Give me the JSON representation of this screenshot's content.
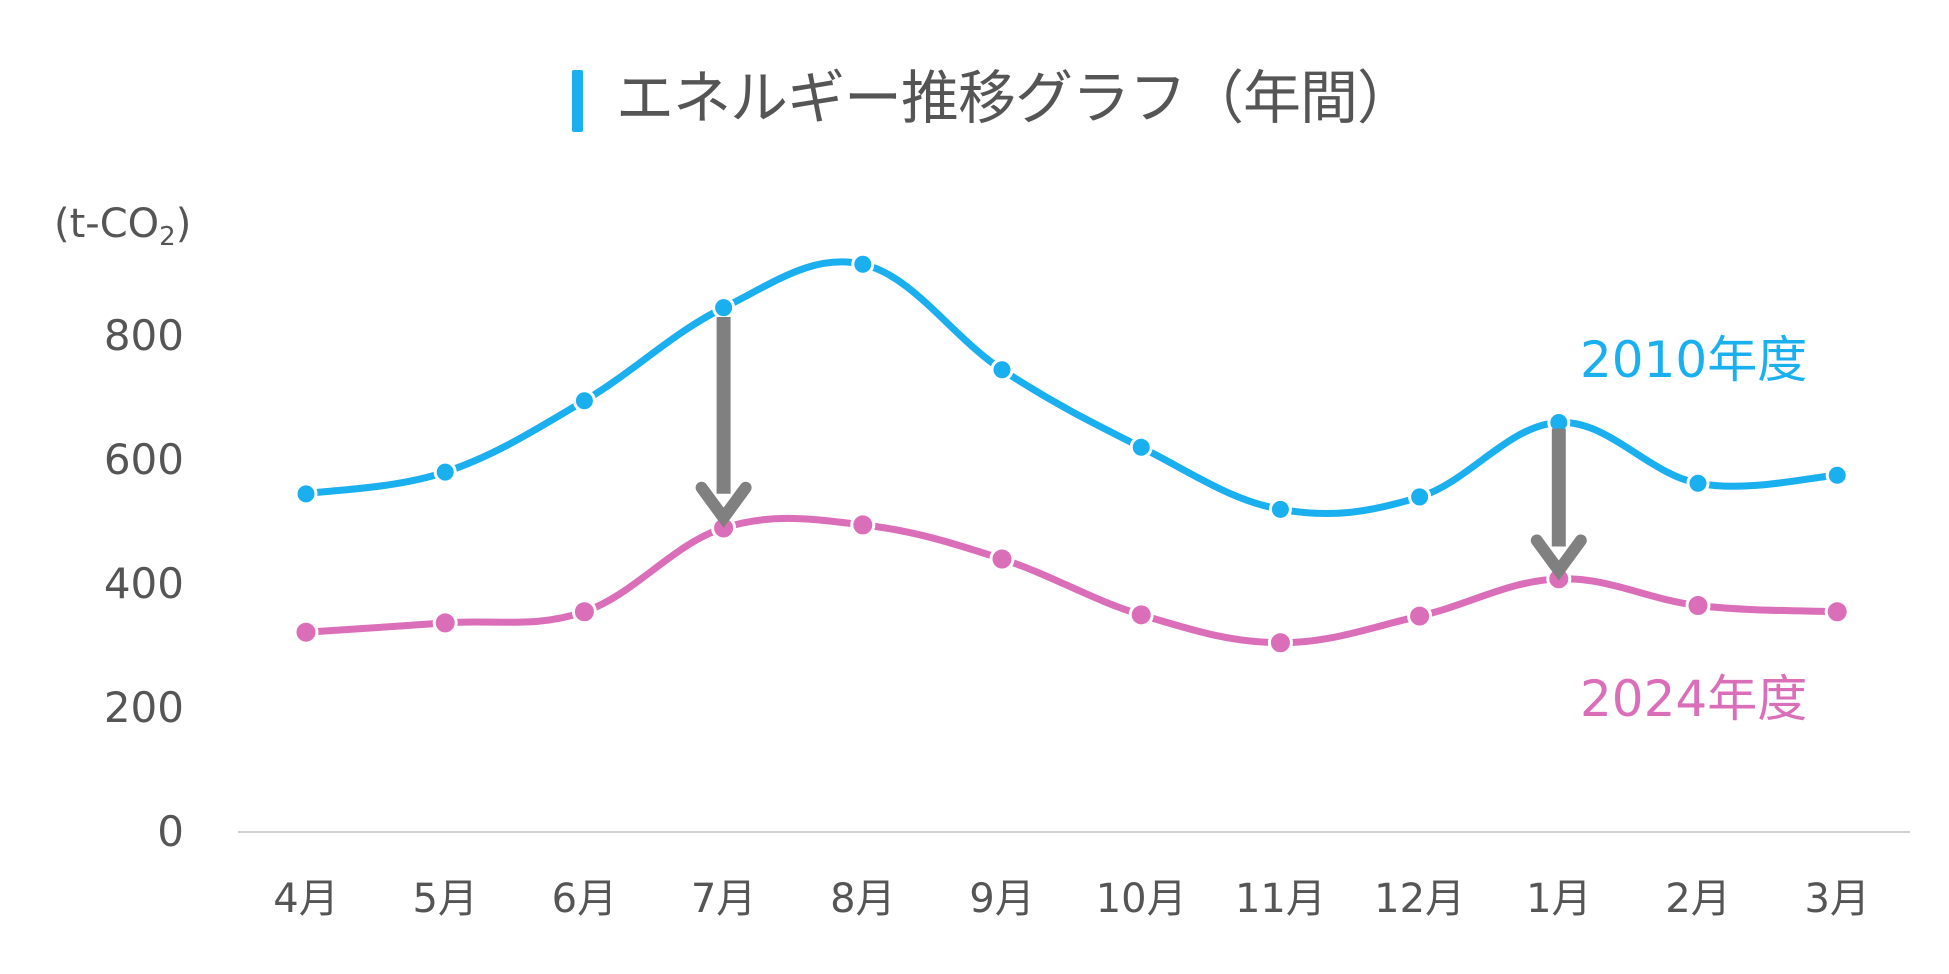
{
  "title": "エネルギー推移グラフ（年間）",
  "unit_label": {
    "main": "(t-CO",
    "sub": "2",
    "close": ")"
  },
  "colors": {
    "accent": "#1AAFEF",
    "series_2010": "#1AAFEF",
    "series_2024": "#DB6EB9",
    "arrow": "#808080",
    "axis": "#D0D0D0",
    "text": "#555555"
  },
  "chart_data": {
    "type": "line",
    "title": "エネルギー推移グラフ（年間）",
    "ylabel": "(t-CO2)",
    "xlabel": "",
    "ylim": [
      0,
      850
    ],
    "yticks": [
      0,
      200,
      400,
      600,
      800
    ],
    "ytick_labels": [
      "0",
      "200",
      "400",
      "600",
      "800"
    ],
    "grid": false,
    "categories": [
      "4月",
      "5月",
      "6月",
      "7月",
      "8月",
      "9月",
      "10月",
      "11月",
      "12月",
      "1月",
      "2月",
      "3月"
    ],
    "series": [
      {
        "name": "2010年度",
        "values": [
          545,
          580,
          695,
          845,
          915,
          745,
          620,
          520,
          540,
          660,
          562,
          575
        ]
      },
      {
        "name": "2024年度",
        "values": [
          322,
          337,
          355,
          490,
          495,
          440,
          350,
          305,
          348,
          408,
          365,
          355
        ]
      }
    ],
    "annotations": [
      {
        "type": "arrow",
        "category": "7月",
        "from": 830,
        "to": 500
      },
      {
        "type": "arrow",
        "category": "1月",
        "from": 650,
        "to": 415
      }
    ]
  }
}
